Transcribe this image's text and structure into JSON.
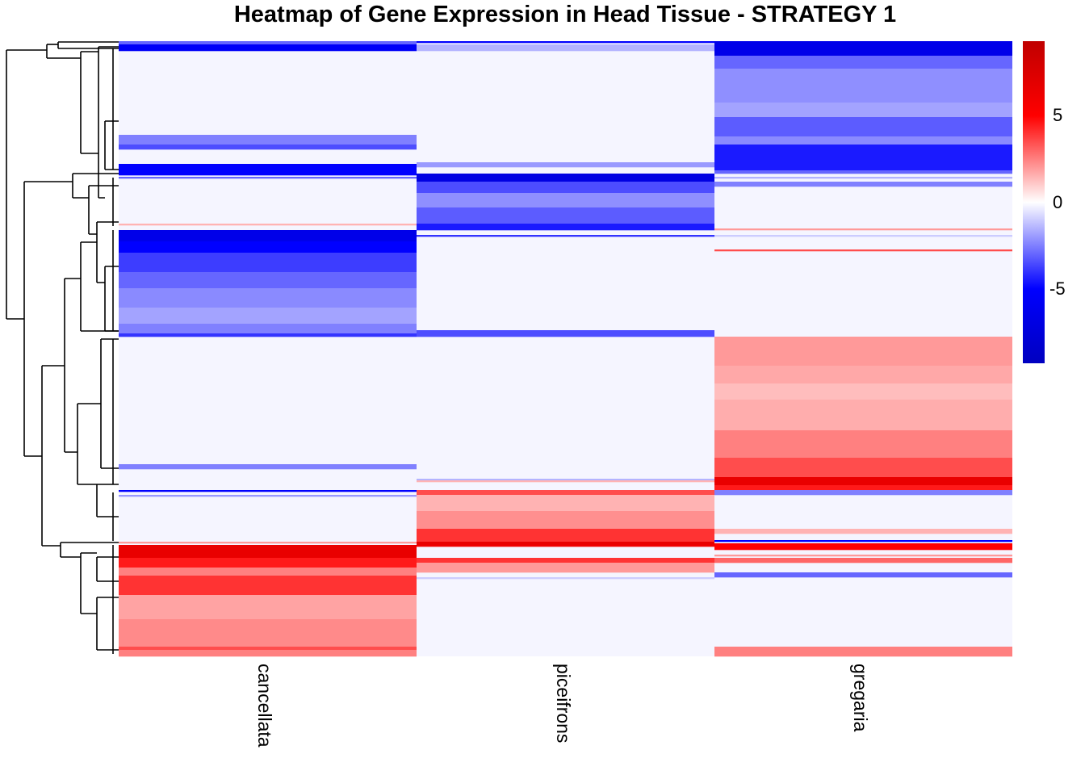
{
  "chart_data": {
    "type": "heatmap",
    "title": "Heatmap of Gene Expression in Head Tissue - STRATEGY 1",
    "columns": [
      "cancellata",
      "piceifrons",
      "gregaria"
    ],
    "row_count": 381,
    "row_dendrogram": true,
    "baseline_value": -0.2,
    "color_scale": {
      "range": [
        -9.3,
        9.3
      ],
      "stops": [
        {
          "value": -9.3,
          "color": "#0000C0"
        },
        {
          "value": -5,
          "color": "#0000FF"
        },
        {
          "value": 0,
          "color": "#FFFFFF"
        },
        {
          "value": 5,
          "color": "#FF0000"
        },
        {
          "value": 9.3,
          "color": "#C00000"
        }
      ],
      "ticks": [
        "5",
        "0",
        "-5"
      ],
      "tick_values": [
        5,
        0,
        -5
      ]
    },
    "segments": {
      "cancellata": [
        [
          0,
          2,
          -3
        ],
        [
          2,
          6,
          -5.5
        ],
        [
          58,
          64,
          -2.5
        ],
        [
          64,
          67,
          -3.5
        ],
        [
          76,
          83,
          -5
        ],
        [
          84,
          85,
          -3
        ],
        [
          113,
          114,
          1.5
        ],
        [
          117,
          124,
          -6.5
        ],
        [
          124,
          131,
          -5
        ],
        [
          131,
          143,
          -3.8
        ],
        [
          143,
          153,
          -3
        ],
        [
          153,
          165,
          -2.3
        ],
        [
          165,
          175,
          -1.8
        ],
        [
          175,
          181,
          -2.5
        ],
        [
          181,
          183,
          -4
        ],
        [
          262,
          265,
          -2.5
        ],
        [
          278,
          279,
          -5
        ],
        [
          281,
          282,
          -2
        ],
        [
          310,
          311,
          2
        ],
        [
          312,
          320,
          6.5
        ],
        [
          320,
          326,
          4.5
        ],
        [
          326,
          331,
          2.5
        ],
        [
          331,
          343,
          4
        ],
        [
          343,
          358,
          1.8
        ],
        [
          358,
          375,
          2.3
        ],
        [
          375,
          377,
          3.5
        ],
        [
          377,
          381,
          2.5
        ]
      ],
      "piceifrons": [
        [
          0,
          1,
          -5
        ],
        [
          2,
          6,
          -1.5
        ],
        [
          75,
          78,
          -2
        ],
        [
          82,
          87,
          -7
        ],
        [
          87,
          94,
          -3.5
        ],
        [
          94,
          103,
          -2.2
        ],
        [
          103,
          113,
          -3.2
        ],
        [
          113,
          117,
          -4.5
        ],
        [
          120,
          121,
          -4
        ],
        [
          179,
          183,
          -3.5
        ],
        [
          271,
          272,
          -1.5
        ],
        [
          272,
          273,
          1.5
        ],
        [
          278,
          281,
          3.5
        ],
        [
          281,
          291,
          1.5
        ],
        [
          291,
          302,
          2.2
        ],
        [
          302,
          310,
          4
        ],
        [
          310,
          312,
          6.5
        ],
        [
          312,
          313,
          6
        ],
        [
          320,
          323,
          4
        ],
        [
          323,
          329,
          2
        ],
        [
          332,
          333,
          -1
        ]
      ],
      "gregaria": [
        [
          0,
          9,
          -6.5
        ],
        [
          9,
          17,
          -3
        ],
        [
          17,
          38,
          -2.2
        ],
        [
          38,
          47,
          -1.8
        ],
        [
          47,
          59,
          -3.2
        ],
        [
          59,
          64,
          -2.3
        ],
        [
          64,
          80,
          -4.5
        ],
        [
          80,
          82,
          -3
        ],
        [
          84,
          85,
          -1.5
        ],
        [
          87,
          90,
          -2.5
        ],
        [
          116,
          117,
          2
        ],
        [
          120,
          121,
          -1
        ],
        [
          129,
          130,
          3.5
        ],
        [
          183,
          201,
          2
        ],
        [
          201,
          212,
          1.7
        ],
        [
          212,
          222,
          1.3
        ],
        [
          222,
          241,
          1.6
        ],
        [
          241,
          258,
          2.5
        ],
        [
          258,
          270,
          3.5
        ],
        [
          270,
          275,
          6.5
        ],
        [
          275,
          278,
          4.5
        ],
        [
          278,
          281,
          -2.5
        ],
        [
          302,
          305,
          1.5
        ],
        [
          309,
          310,
          -5
        ],
        [
          311,
          315,
          5
        ],
        [
          318,
          319,
          2
        ],
        [
          320,
          323,
          3
        ],
        [
          329,
          332,
          -3
        ],
        [
          375,
          381,
          2.5
        ]
      ]
    }
  }
}
